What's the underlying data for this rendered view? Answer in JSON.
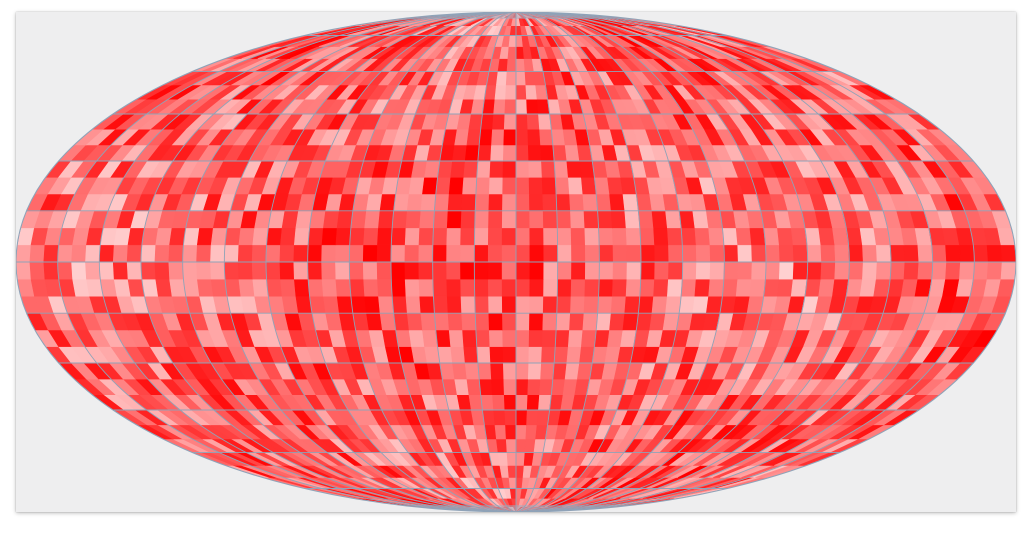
{
  "map": {
    "projection": "mollweide",
    "graticule": {
      "meridian_step_deg": 15,
      "parallel_step_deg": 15
    },
    "colors": {
      "background": "#eeeeef",
      "graticule": "#8fa3b8",
      "pole": "#9fb0c2",
      "cell_min": "#ffffff",
      "cell_max": "#ff0000"
    },
    "colormap": "white-to-red",
    "grid_cell_deg": 5
  }
}
